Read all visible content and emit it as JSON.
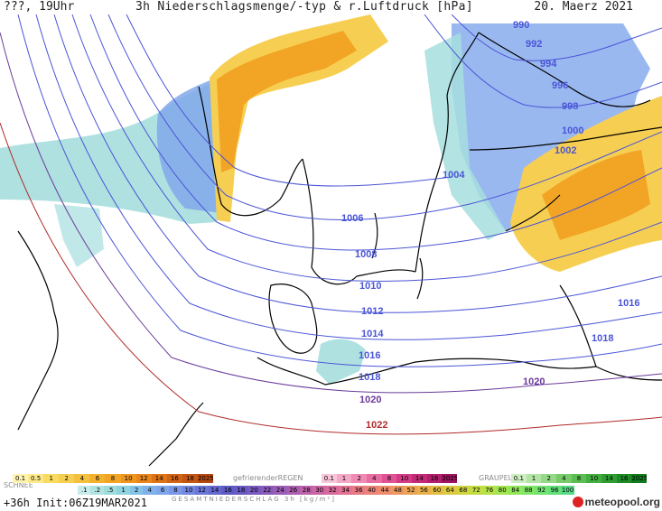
{
  "header": {
    "left": "???, 19Uhr",
    "title": "3h Niederschlagsmenge/-typ & r.Luftdruck [hPa]",
    "date": "20. Maerz 2021"
  },
  "colors": {
    "isobar": "#4a55d6",
    "isobar_high": "#b02a2a",
    "coast": "#000000",
    "rain_light": "#f6d35a",
    "rain_mid": "#f2a623",
    "snow_light": "#9fdcdc",
    "snow_mid": "#7fa6ea"
  },
  "isobar_labels": [
    {
      "text": "990",
      "color": "#4a55d6"
    },
    {
      "text": "992",
      "color": "#4a55d6"
    },
    {
      "text": "994",
      "color": "#4a55d6"
    },
    {
      "text": "996",
      "color": "#4a55d6"
    },
    {
      "text": "998",
      "color": "#4a55d6"
    },
    {
      "text": "1000",
      "color": "#4a55d6"
    },
    {
      "text": "1002",
      "color": "#4a55d6"
    },
    {
      "text": "1004",
      "color": "#4a55d6"
    },
    {
      "text": "1006",
      "color": "#4a55d6"
    },
    {
      "text": "1008",
      "color": "#4a55d6"
    },
    {
      "text": "1010",
      "color": "#4a55d6"
    },
    {
      "text": "1012",
      "color": "#4a55d6"
    },
    {
      "text": "1014",
      "color": "#4a55d6"
    },
    {
      "text": "1016",
      "color": "#4a55d6"
    },
    {
      "text": "1018",
      "color": "#4a55d6"
    },
    {
      "text": "1020",
      "color": "#6a3a9a"
    },
    {
      "text": "1022",
      "color": "#b02a2a"
    },
    {
      "text": "1016",
      "color": "#4a55d6"
    },
    {
      "text": "1018",
      "color": "#4a55d6"
    },
    {
      "text": "1020",
      "color": "#6a3a9a"
    }
  ],
  "legend": {
    "snow_label": "SCHNEE",
    "freezing_label": "gefrierenderREGEN",
    "graupel_label": "GRAUPEL",
    "total_label": "GESAMTNIEDERSCHLAG 3h [kg/m²]",
    "rain_scale": [
      "0.1",
      "0.5",
      "1",
      "2",
      "4",
      "6",
      "8",
      "10",
      "12",
      "14",
      "16",
      "18",
      "2025+"
    ],
    "freezing_scale": [
      "0.1",
      "1",
      "2",
      "4",
      "8",
      "10",
      "14",
      "16",
      "2025+"
    ],
    "graupel_scale": [
      "0.1",
      "1",
      "2",
      "4",
      "8",
      "10",
      "14",
      "16",
      "2025+"
    ],
    "total_scale": [
      ".1",
      ".2",
      ".5",
      "1",
      "2",
      "4",
      "6",
      "8",
      "10",
      "12",
      "14",
      "16",
      "18",
      "20",
      "22",
      "24",
      "26",
      "28",
      "30",
      "32",
      "34",
      "36",
      "40",
      "44",
      "48",
      "52",
      "56",
      "60",
      "64",
      "68",
      "72",
      "76",
      "80",
      "84",
      "88",
      "92",
      "96",
      "100"
    ]
  },
  "footer": {
    "init": "+36h  Init:06Z19MAR2021",
    "brand": "meteopool.org"
  }
}
